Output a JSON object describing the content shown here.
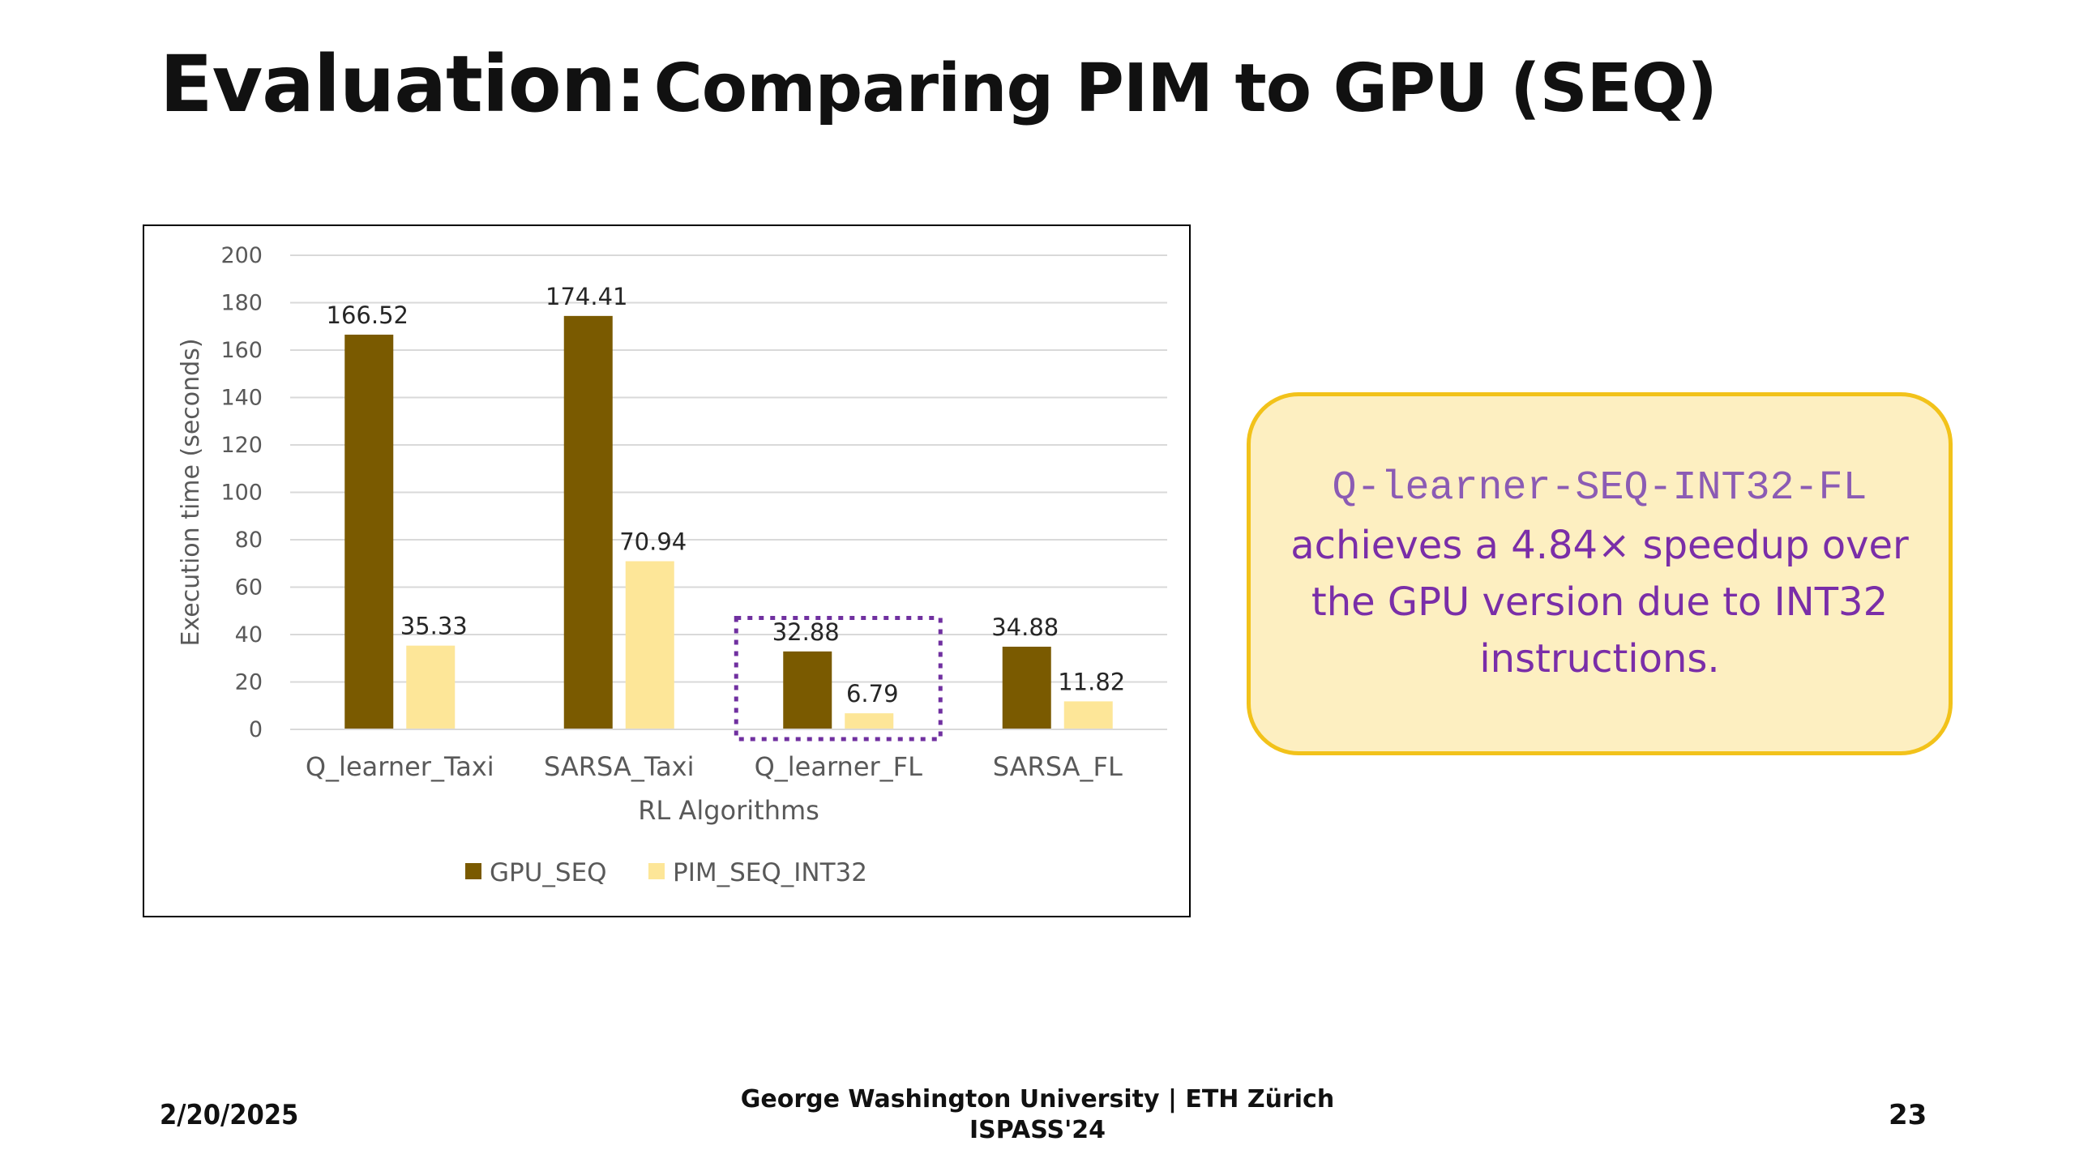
{
  "slide": {
    "title_main": "Evaluation:",
    "title_sub": "Comparing PIM to GPU (SEQ)",
    "footer_date": "2/20/2025",
    "footer_line1": "George Washington University | ETH Zürich",
    "footer_line2": "ISPASS'24",
    "page_number": "23"
  },
  "callout": {
    "code": "Q-learner-SEQ-INT32-FL",
    "text": "achieves a 4.84× speedup over the GPU version due to INT32 instructions."
  },
  "colors": {
    "gpu": "#7a5a00",
    "pim": "#fde698",
    "highlight": "#7030a0",
    "grid": "#d9d9d9",
    "axis_text": "#595959"
  },
  "chart_data": {
    "type": "bar",
    "title": "",
    "xlabel": "RL Algorithms",
    "ylabel": "Execution time (seconds)",
    "ylim": [
      0,
      200
    ],
    "yticks": [
      0,
      20,
      40,
      60,
      80,
      100,
      120,
      140,
      160,
      180,
      200
    ],
    "categories": [
      "Q_learner_Taxi",
      "SARSA_Taxi",
      "Q_learner_FL",
      "SARSA_FL"
    ],
    "series": [
      {
        "name": "GPU_SEQ",
        "values": [
          166.52,
          174.41,
          32.88,
          34.88
        ],
        "labels": [
          "166.52",
          "174.41",
          "32.88",
          "34.88"
        ]
      },
      {
        "name": "PIM_SEQ_INT32",
        "values": [
          35.33,
          70.94,
          6.79,
          11.82
        ],
        "labels": [
          "35.33",
          "70.94",
          "6.79",
          "11.82"
        ]
      }
    ],
    "legend": "bottom",
    "grid": true,
    "highlighted_category": "Q_learner_FL"
  }
}
